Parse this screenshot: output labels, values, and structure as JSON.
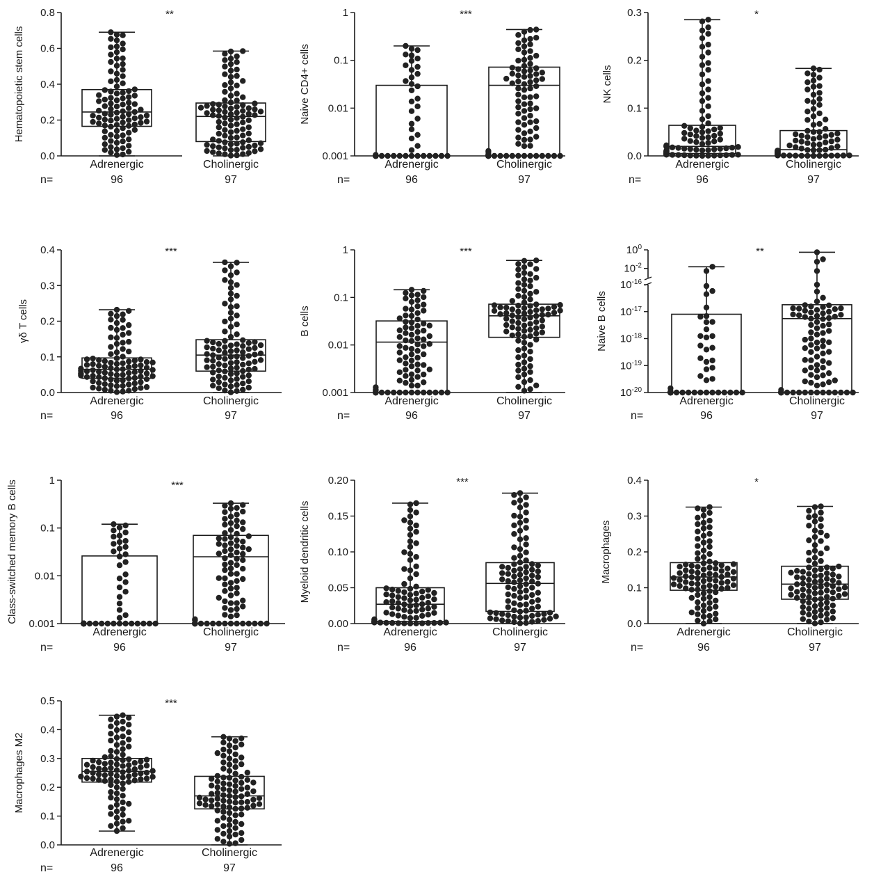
{
  "colors": {
    "ink": "#1a1a1a",
    "dot": "#222222",
    "box_fill": "#ffffff"
  },
  "chart_data": [
    {
      "type": "box-dot",
      "ylabel": "Hematopoietic stem cells",
      "scale": "linear",
      "ylim": [
        0,
        0.8
      ],
      "yticks": [
        "0.0",
        "0.2",
        "0.4",
        "0.6",
        "0.8"
      ],
      "significance": "**",
      "n_label": "n=",
      "groups": [
        {
          "name": "Adrenergic",
          "n": "96",
          "min": 0.0,
          "q1": 0.165,
          "median": 0.245,
          "q3": 0.37,
          "max": 0.69
        },
        {
          "name": "Cholinergic",
          "n": "97",
          "min": 0.0,
          "q1": 0.08,
          "median": 0.22,
          "q3": 0.295,
          "max": 0.585
        }
      ]
    },
    {
      "type": "box-dot",
      "ylabel": "Naive CD4+ cells",
      "scale": "log",
      "ylim": [
        0.001,
        1
      ],
      "yticks": [
        "0.001",
        "0.01",
        "0.1",
        "1"
      ],
      "significance": "***",
      "n_label": "n=",
      "groups": [
        {
          "name": "Adrenergic",
          "n": "96",
          "min": 0.001,
          "q1": 0.001,
          "median": 0.001,
          "q3": 0.03,
          "max": 0.2
        },
        {
          "name": "Cholinergic",
          "n": "97",
          "min": 0.001,
          "q1": 0.001,
          "median": 0.03,
          "q3": 0.072,
          "max": 0.44
        }
      ]
    },
    {
      "type": "box-dot",
      "ylabel": "NK cells",
      "scale": "linear",
      "ylim": [
        0,
        0.3
      ],
      "yticks": [
        "0.0",
        "0.1",
        "0.2",
        "0.3"
      ],
      "significance": "*",
      "n_label": "n=",
      "groups": [
        {
          "name": "Adrenergic",
          "n": "96",
          "min": 0.0,
          "q1": 0.005,
          "median": 0.02,
          "q3": 0.064,
          "max": 0.285
        },
        {
          "name": "Cholinergic",
          "n": "97",
          "min": 0.0,
          "q1": 0.002,
          "median": 0.013,
          "q3": 0.053,
          "max": 0.183
        }
      ]
    },
    {
      "type": "box-dot",
      "ylabel": "γδ T cells",
      "scale": "linear",
      "ylim": [
        0,
        0.4
      ],
      "yticks": [
        "0.0",
        "0.1",
        "0.2",
        "0.3",
        "0.4"
      ],
      "significance": "***",
      "n_label": "n=",
      "groups": [
        {
          "name": "Adrenergic",
          "n": "96",
          "min": 0.0,
          "q1": 0.04,
          "median": 0.065,
          "q3": 0.097,
          "max": 0.232
        },
        {
          "name": "Cholinergic",
          "n": "97",
          "min": 0.0,
          "q1": 0.06,
          "median": 0.105,
          "q3": 0.148,
          "max": 0.365
        }
      ]
    },
    {
      "type": "box-dot",
      "ylabel": "B cells",
      "scale": "log",
      "ylim": [
        0.001,
        1
      ],
      "yticks": [
        "0.001",
        "0.01",
        "0.1",
        "1"
      ],
      "significance": "***",
      "n_label": "n=",
      "groups": [
        {
          "name": "Adrenergic",
          "n": "96",
          "min": 0.001,
          "q1": 0.001,
          "median": 0.0115,
          "q3": 0.032,
          "max": 0.145
        },
        {
          "name": "Cholinergic",
          "n": "97",
          "min": 0.001,
          "q1": 0.0145,
          "median": 0.041,
          "q3": 0.072,
          "max": 0.6
        }
      ]
    },
    {
      "type": "box-dot",
      "ylabel": "Naive B cells",
      "scale": "log-broken",
      "ylim": [
        1e-20,
        1
      ],
      "lower_range": [
        1e-20,
        1e-16
      ],
      "upper_range": [
        0.001,
        1
      ],
      "yticks": [
        "10-20",
        "10-19",
        "10-18",
        "10-17",
        "10-16",
        "10-2",
        "100"
      ],
      "significance": "**",
      "n_label": "n=",
      "groups": [
        {
          "name": "Adrenergic",
          "n": "96",
          "min": 1e-20,
          "q1": 1e-20,
          "median": 1e-20,
          "q3": 8e-18,
          "max": 0.015
        },
        {
          "name": "Cholinergic",
          "n": "97",
          "min": 1e-20,
          "q1": 1e-20,
          "median": 5.5e-18,
          "q3": 1.8e-17,
          "max": 0.55
        }
      ]
    },
    {
      "type": "box-dot",
      "ylabel": "Class-switched memory B cells",
      "scale": "log",
      "ylim": [
        0.001,
        1
      ],
      "yticks": [
        "0.001",
        "0.01",
        "0.1",
        "1"
      ],
      "significance": "***",
      "n_label": "n=",
      "groups": [
        {
          "name": "Adrenergic",
          "n": "96",
          "min": 0.001,
          "q1": 0.001,
          "median": 0.001,
          "q3": 0.026,
          "max": 0.12
        },
        {
          "name": "Cholinergic",
          "n": "97",
          "min": 0.001,
          "q1": 0.001,
          "median": 0.025,
          "q3": 0.07,
          "max": 0.33
        }
      ]
    },
    {
      "type": "box-dot",
      "ylabel": "Myeloid dendritic cells",
      "scale": "linear",
      "ylim": [
        0,
        0.2
      ],
      "yticks": [
        "0.00",
        "0.05",
        "0.10",
        "0.15",
        "0.20"
      ],
      "significance": "***",
      "n_label": "n=",
      "groups": [
        {
          "name": "Adrenergic",
          "n": "96",
          "min": 0.0,
          "q1": 0.003,
          "median": 0.027,
          "q3": 0.05,
          "max": 0.168
        },
        {
          "name": "Cholinergic",
          "n": "97",
          "min": 0.0,
          "q1": 0.017,
          "median": 0.056,
          "q3": 0.085,
          "max": 0.182
        }
      ]
    },
    {
      "type": "box-dot",
      "ylabel": "Macrophages",
      "scale": "linear",
      "ylim": [
        0,
        0.4
      ],
      "yticks": [
        "0.0",
        "0.1",
        "0.2",
        "0.3",
        "0.4"
      ],
      "significance": "*",
      "n_label": "n=",
      "groups": [
        {
          "name": "Adrenergic",
          "n": "96",
          "min": 0.0,
          "q1": 0.093,
          "median": 0.13,
          "q3": 0.17,
          "max": 0.325
        },
        {
          "name": "Cholinergic",
          "n": "97",
          "min": 0.0,
          "q1": 0.068,
          "median": 0.11,
          "q3": 0.16,
          "max": 0.327
        }
      ]
    },
    {
      "type": "box-dot",
      "ylabel": "Macrophages M2",
      "scale": "linear",
      "ylim": [
        0,
        0.5
      ],
      "yticks": [
        "0.0",
        "0.1",
        "0.2",
        "0.3",
        "0.4",
        "0.5"
      ],
      "significance": "***",
      "n_label": "n=",
      "groups": [
        {
          "name": "Adrenergic",
          "n": "96",
          "min": 0.048,
          "q1": 0.218,
          "median": 0.255,
          "q3": 0.3,
          "max": 0.45
        },
        {
          "name": "Cholinergic",
          "n": "97",
          "min": 0.0,
          "q1": 0.125,
          "median": 0.17,
          "q3": 0.238,
          "max": 0.375
        }
      ]
    }
  ]
}
